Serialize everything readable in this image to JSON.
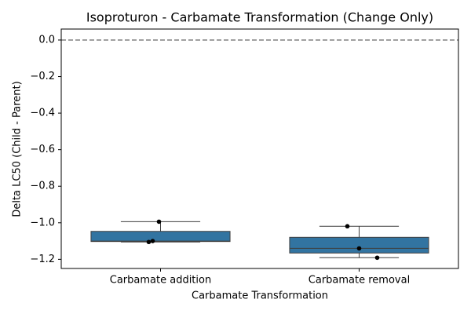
{
  "chart_data": {
    "type": "box",
    "title": "Isoproturon - Carbamate Transformation (Change Only)",
    "x_label": "Carbamate Transformation",
    "y_label": "Delta LC50 (Child - Parent)",
    "categories": [
      "Carbamate addition",
      "Carbamate removal"
    ],
    "color": "#3274a1",
    "point_color": "#000000",
    "boxes": [
      {
        "whisker_low": -1.105,
        "q1": -1.1025,
        "median": -1.1,
        "q3": -1.047,
        "whisker_high": -0.994,
        "points": [
          -0.994,
          -1.105,
          -1.1
        ]
      },
      {
        "whisker_low": -1.191,
        "q1": -1.1655,
        "median": -1.14,
        "q3": -1.0795,
        "whisker_high": -1.019,
        "points": [
          -1.019,
          -1.14,
          -1.191
        ]
      }
    ],
    "reference_line": 0,
    "ylim": [
      -1.25,
      0.06
    ],
    "yticks": [
      {
        "value": 0,
        "label": "0.0"
      },
      {
        "value": -0.2,
        "label": "−0.2"
      },
      {
        "value": -0.4,
        "label": "−0.4"
      },
      {
        "value": -0.6,
        "label": "−0.6"
      },
      {
        "value": -0.8,
        "label": "−0.8"
      },
      {
        "value": -1.0,
        "label": "−1.0"
      },
      {
        "value": -1.2,
        "label": "−1.2"
      }
    ]
  }
}
